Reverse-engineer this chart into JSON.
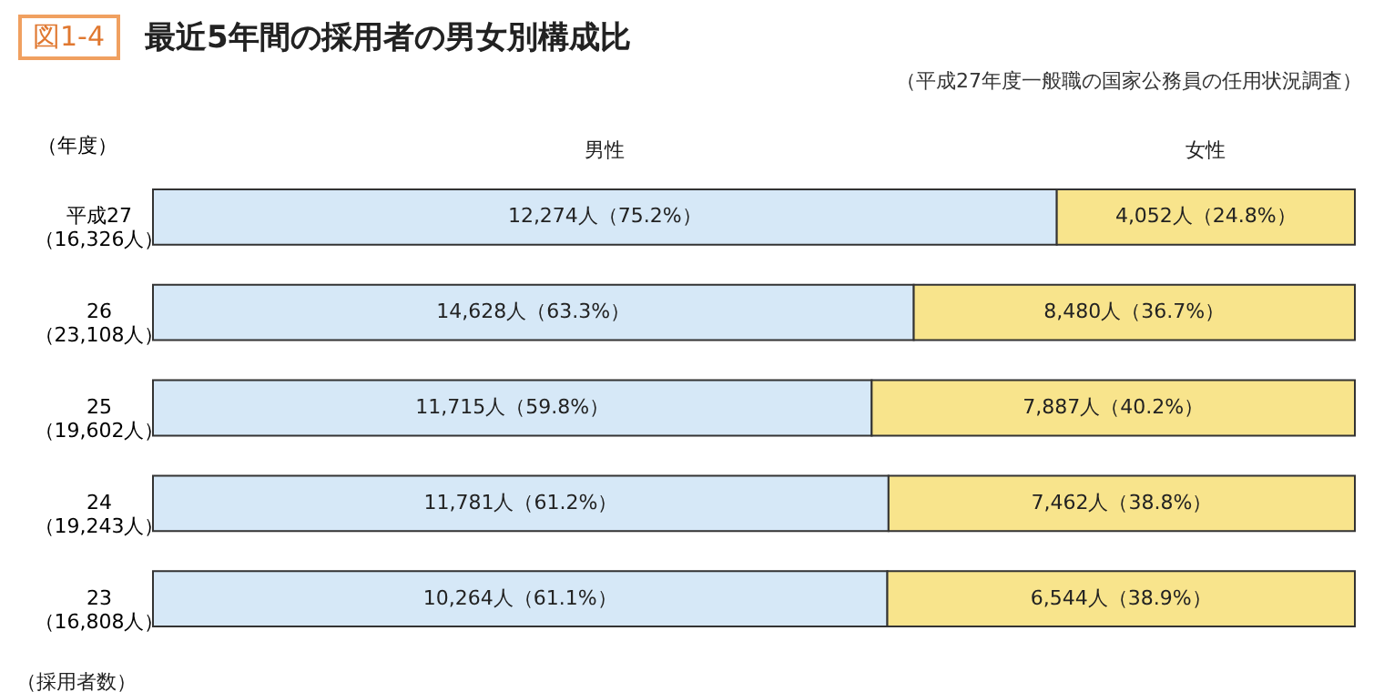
{
  "chart_data": {
    "type": "bar",
    "orientation": "horizontal",
    "stacked": true,
    "title": "最近5年間の採用者の男女別構成比",
    "subtitle": "（平成27年度一般職の国家公務員の任用状況調査）",
    "ylabel": "（年度）",
    "annotations": [
      "図1-4",
      "（採用者数）"
    ],
    "categories": [
      "平成27\n（16,326人）",
      "26\n（23,108人）",
      "25\n（19,602人）",
      "24\n（19,243人）",
      "23\n（16,808人）"
    ],
    "xlim": [
      0,
      100
    ],
    "tick_labels": "y",
    "series": [
      {
        "name": "男性",
        "color": "#d6e8f7",
        "values": [
          75.2,
          63.3,
          59.8,
          61.2,
          61.1
        ],
        "value_labels": [
          "12,274人（75.2%）",
          "14,628人（63.3%）",
          "11,715人（59.8%）",
          "11,781人（61.2%）",
          "10,264人（61.1%）"
        ]
      },
      {
        "name": "女性",
        "color": "#f8e48c",
        "values": [
          24.8,
          36.7,
          40.2,
          38.8,
          38.9
        ],
        "value_labels": [
          "4,052人（24.8%）",
          "8,480人（36.7%）",
          "7,887人（40.2%）",
          "7,462人（38.8%）",
          "6,544人（38.9%）"
        ]
      }
    ]
  }
}
